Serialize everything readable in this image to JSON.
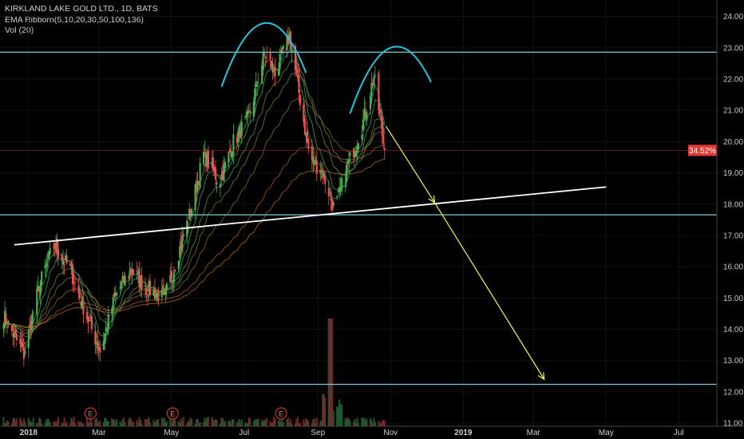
{
  "legend": {
    "title": "KIRKLAND LAKE GOLD LTD., 1D, BATS",
    "ema": "EMA Ribborn(5,10,20,30,50,100,136)",
    "vol": "Vol (20)"
  },
  "chart_data": {
    "type": "candlestick",
    "symbol": "KIRKLAND LAKE GOLD LTD.",
    "interval": "1D",
    "exchange": "BATS",
    "ylim": [
      10.9,
      24.4
    ],
    "y_ticks": [
      "11.00",
      "12.00",
      "13.00",
      "14.00",
      "15.00",
      "16.00",
      "17.00",
      "18.00",
      "19.00",
      "20.00",
      "21.00",
      "22.00",
      "23.00",
      "24.00"
    ],
    "x_ticks": [
      "2018",
      "Mar",
      "May",
      "Jul",
      "Sep",
      "Nov",
      "2019",
      "Mar",
      "May",
      "Jul"
    ],
    "x_tick_dates": [
      "2018-01-01",
      "2018-03-01",
      "2018-05-01",
      "2018-07-01",
      "2018-09-01",
      "2018-11-01",
      "2019-01-01",
      "2019-03-01",
      "2019-05-01",
      "2019-07-01"
    ],
    "last_price": "19.72",
    "last_change": "34.52%",
    "horizontal_levels": [
      {
        "label": "22.86",
        "value": 22.86,
        "color": "#7ec8d6"
      },
      {
        "label": "17.66",
        "value": 17.66,
        "color": "#7ec8d6"
      },
      {
        "label": "12.24",
        "value": 12.24,
        "color": "#7ec8d6"
      }
    ],
    "trendline": {
      "from": [
        "2017-12-20",
        16.7
      ],
      "to": [
        "2019-05-01",
        18.55
      ],
      "color": "#ffffff"
    },
    "arrows": [
      {
        "from": [
          "2018-10-28",
          20.5
        ],
        "to": [
          "2018-12-08",
          18.05
        ],
        "color": "#e8e84a"
      },
      {
        "from": [
          "2018-12-08",
          18.05
        ],
        "to": [
          "2019-03-10",
          12.4
        ],
        "color": "#e8e84a"
      }
    ],
    "earnings_markers": [
      "2018-02-22",
      "2018-05-02",
      "2018-08-01"
    ],
    "earnings_label": "E",
    "ohlc_path": [
      [
        "2017-12-10",
        14.5
      ],
      [
        "2017-12-28",
        13.2
      ],
      [
        "2018-01-10",
        15.4
      ],
      [
        "2018-01-22",
        16.7
      ],
      [
        "2018-02-05",
        15.9
      ],
      [
        "2018-02-18",
        14.5
      ],
      [
        "2018-03-02",
        13.3
      ],
      [
        "2018-03-15",
        15.1
      ],
      [
        "2018-03-28",
        15.9
      ],
      [
        "2018-04-10",
        15.3
      ],
      [
        "2018-04-25",
        15.0
      ],
      [
        "2018-05-05",
        16.2
      ],
      [
        "2018-05-18",
        17.9
      ],
      [
        "2018-05-28",
        19.6
      ],
      [
        "2018-06-10",
        18.7
      ],
      [
        "2018-06-22",
        20.0
      ],
      [
        "2018-07-05",
        20.8
      ],
      [
        "2018-07-18",
        22.8
      ],
      [
        "2018-07-28",
        22.2
      ],
      [
        "2018-08-08",
        23.4
      ],
      [
        "2018-08-15",
        21.8
      ],
      [
        "2018-08-25",
        19.5
      ],
      [
        "2018-09-05",
        19.0
      ],
      [
        "2018-09-15",
        17.8
      ],
      [
        "2018-09-25",
        19.1
      ],
      [
        "2018-10-08",
        20.5
      ],
      [
        "2018-10-18",
        22.1
      ],
      [
        "2018-10-27",
        19.72
      ]
    ]
  }
}
